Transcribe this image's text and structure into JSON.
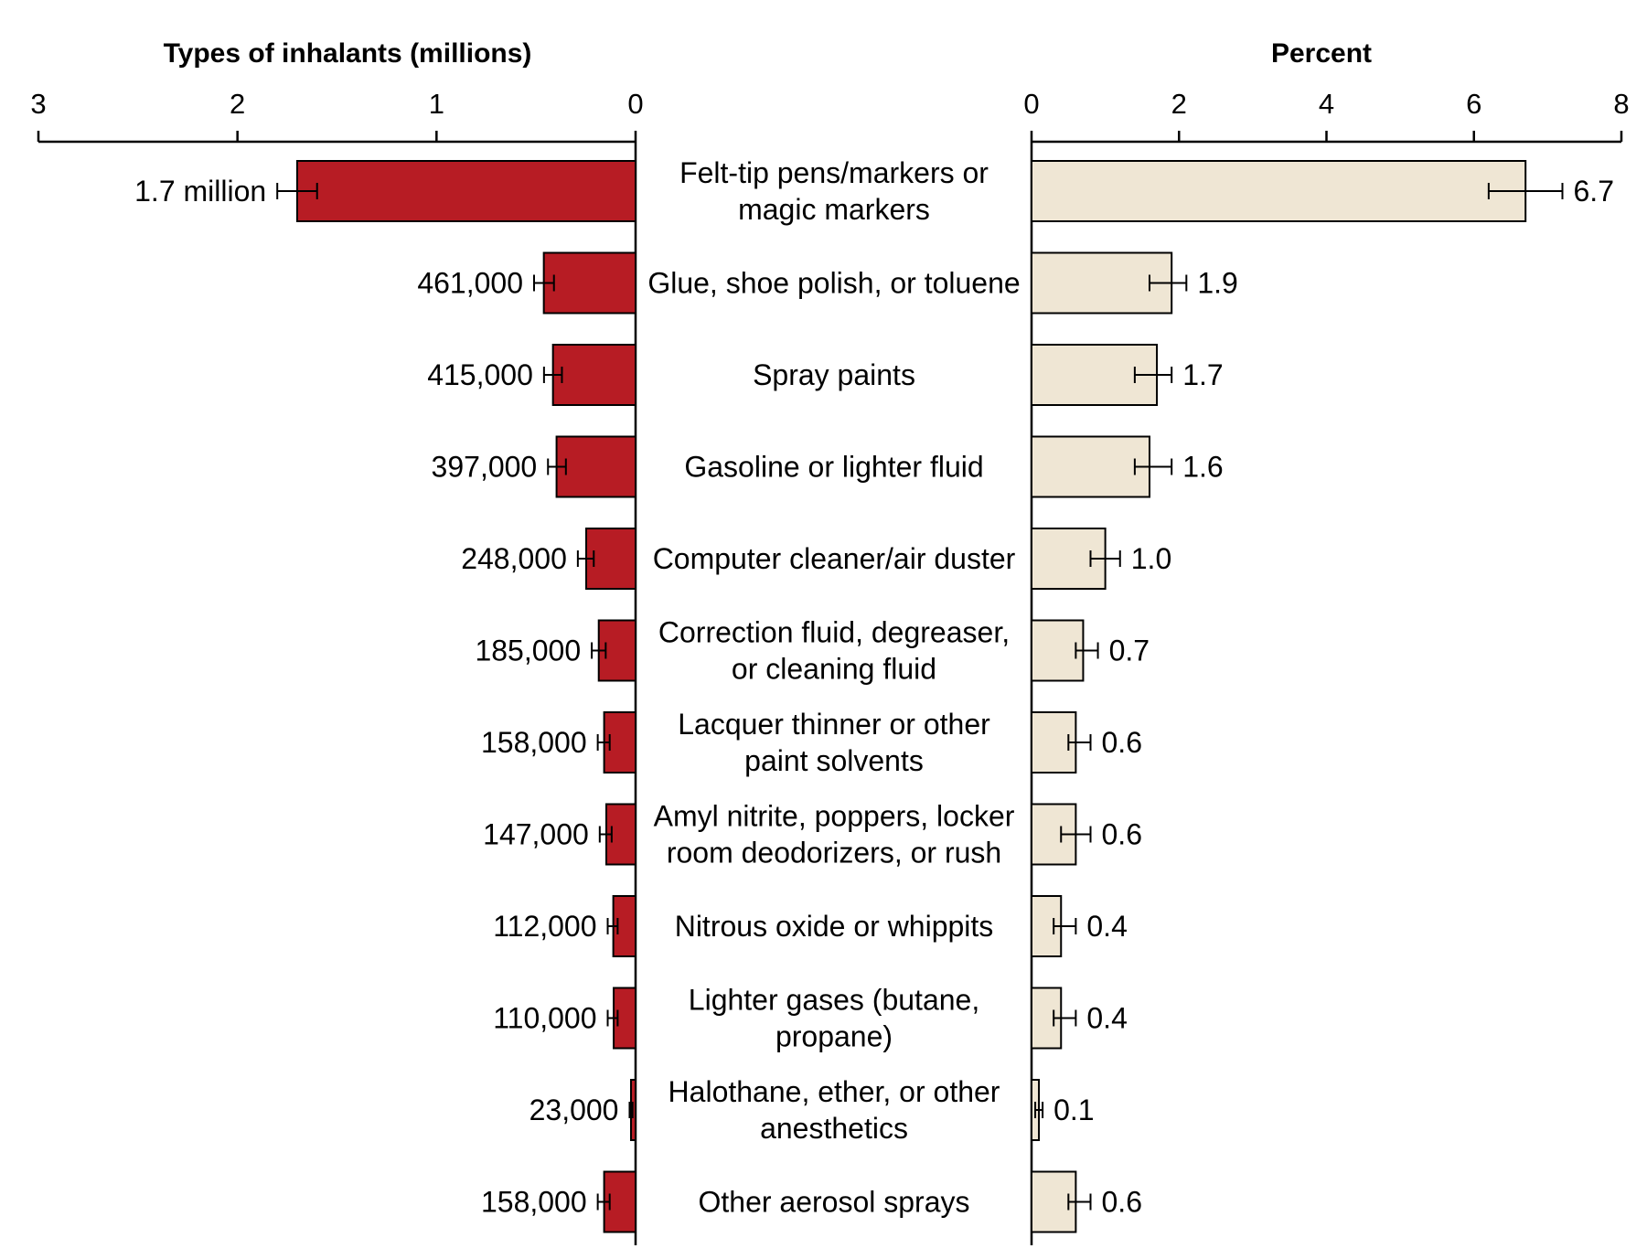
{
  "chart_data": [
    {
      "type": "bar",
      "orientation": "horizontal-reversed",
      "title": "Types of inhalants (millions)",
      "xlim": [
        0,
        3
      ],
      "ticks": [
        "3",
        "2",
        "1",
        "0"
      ],
      "bar_color": "#b71c24",
      "categories": [
        "Felt-tip pens/markers or magic markers",
        "Glue, shoe polish, or toluene",
        "Spray paints",
        "Gasoline or lighter fluid",
        "Computer cleaner/air duster",
        "Correction fluid, degreaser, or cleaning fluid",
        "Lacquer thinner or other paint solvents",
        "Amyl nitrite, poppers, locker room deodorizers, or rush",
        "Nitrous oxide or whippits",
        "Lighter gases (butane, propane)",
        "Halothane, ether, or other anesthetics",
        "Other aerosol sprays"
      ],
      "values": [
        1.7,
        0.461,
        0.415,
        0.397,
        0.248,
        0.185,
        0.158,
        0.147,
        0.112,
        0.11,
        0.023,
        0.158
      ],
      "error_low": [
        1.6,
        0.41,
        0.37,
        0.35,
        0.21,
        0.15,
        0.13,
        0.12,
        0.09,
        0.09,
        0.015,
        0.13
      ],
      "error_high": [
        1.8,
        0.51,
        0.46,
        0.44,
        0.29,
        0.22,
        0.19,
        0.18,
        0.14,
        0.14,
        0.03,
        0.19
      ],
      "value_labels": [
        "1.7 million",
        "461,000",
        "415,000",
        "397,000",
        "248,000",
        "185,000",
        "158,000",
        "147,000",
        "112,000",
        "110,000",
        "23,000",
        "158,000"
      ]
    },
    {
      "type": "bar",
      "orientation": "horizontal",
      "title": "Percent",
      "xlim": [
        0,
        8
      ],
      "ticks": [
        "0",
        "2",
        "4",
        "6",
        "8"
      ],
      "bar_color": "#efe6d4",
      "values": [
        6.7,
        1.9,
        1.7,
        1.6,
        1.0,
        0.7,
        0.6,
        0.6,
        0.4,
        0.4,
        0.1,
        0.6
      ],
      "error_low": [
        6.2,
        1.6,
        1.4,
        1.4,
        0.8,
        0.6,
        0.5,
        0.4,
        0.3,
        0.3,
        0.05,
        0.5
      ],
      "error_high": [
        7.2,
        2.1,
        1.9,
        1.9,
        1.2,
        0.9,
        0.8,
        0.8,
        0.6,
        0.6,
        0.15,
        0.8
      ],
      "value_labels": [
        "6.7",
        "1.9",
        "1.7",
        "1.6",
        "1.0",
        "0.7",
        "0.6",
        "0.6",
        "0.4",
        "0.4",
        "0.1",
        "0.6"
      ]
    }
  ],
  "category_lines": [
    [
      "Felt-tip pens/markers or",
      "magic markers"
    ],
    [
      "Glue, shoe polish, or toluene"
    ],
    [
      "Spray paints"
    ],
    [
      "Gasoline or lighter fluid"
    ],
    [
      "Computer cleaner/air duster"
    ],
    [
      "Correction fluid, degreaser,",
      "or cleaning fluid"
    ],
    [
      "Lacquer thinner or other",
      "paint solvents"
    ],
    [
      "Amyl nitrite, poppers, locker",
      "room deodorizers, or rush"
    ],
    [
      "Nitrous oxide or whippits"
    ],
    [
      "Lighter gases (butane,",
      "propane)"
    ],
    [
      "Halothane, ether, or other",
      "anesthetics"
    ],
    [
      "Other aerosol sprays"
    ]
  ]
}
